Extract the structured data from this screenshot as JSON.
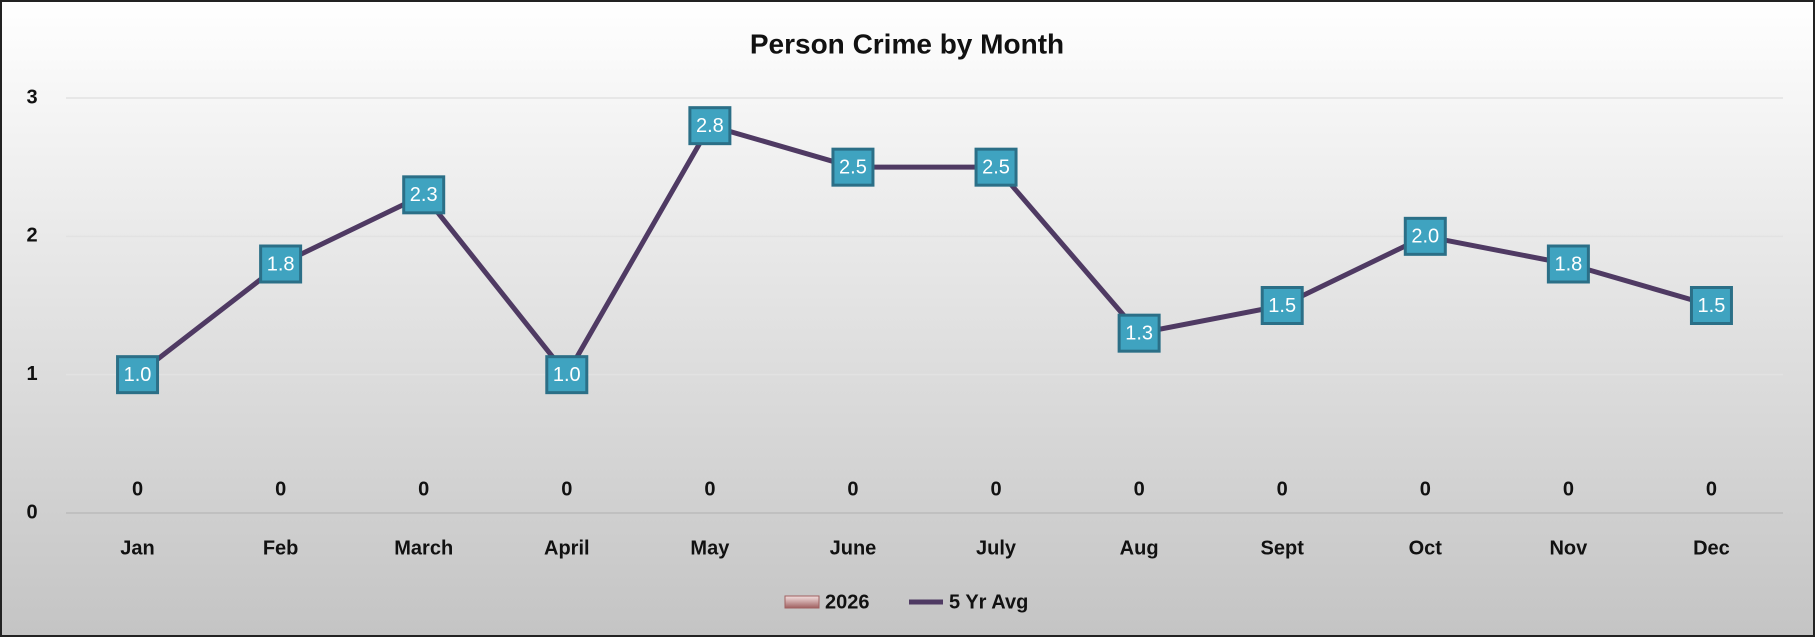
{
  "chart_data": {
    "type": "bar_line",
    "title": "Person Crime by Month",
    "categories": [
      "Jan",
      "Feb",
      "March",
      "April",
      "May",
      "June",
      "July",
      "Aug",
      "Sept",
      "Oct",
      "Nov",
      "Dec"
    ],
    "series": [
      {
        "name": "2026",
        "type": "bar",
        "color": "#c9a0a0",
        "values": [
          0,
          0,
          0,
          0,
          0,
          0,
          0,
          0,
          0,
          0,
          0,
          0
        ]
      },
      {
        "name": "5 Yr Avg",
        "type": "line",
        "color": "#4f3a63",
        "marker_color": "#3fa3c0",
        "values": [
          1.0,
          1.8,
          2.3,
          1.0,
          2.8,
          2.5,
          2.5,
          1.3,
          1.5,
          2.0,
          1.8,
          1.5
        ],
        "value_labels": [
          "1.0",
          "1.8",
          "2.3",
          "1.0",
          "2.8",
          "2.5",
          "2.5",
          "1.3",
          "1.5",
          "2.0",
          "1.8",
          "1.5"
        ]
      }
    ],
    "ylim": [
      0,
      3
    ],
    "yticks": [
      0,
      1,
      2,
      3
    ],
    "grid": true,
    "legend": "bottom"
  }
}
